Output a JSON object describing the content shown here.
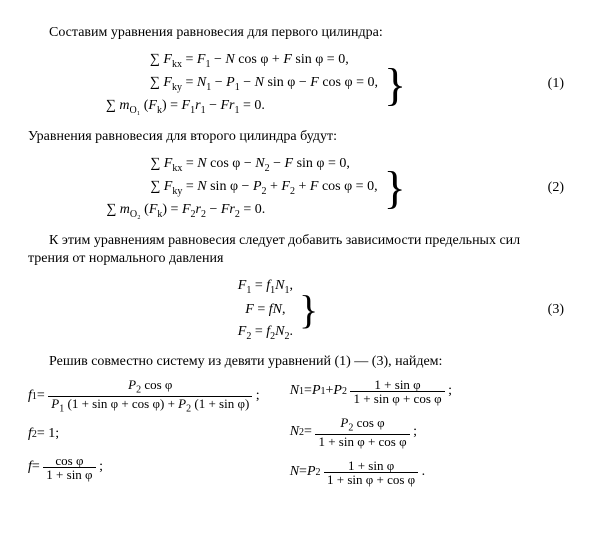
{
  "para1": "Составим уравнения равновесия для первого цилиндра:",
  "eq1": {
    "l1": "∑ Fₖₓ = F₁ − N cos φ + F sin φ = 0,",
    "l2": "∑ Fₖᵧ = N₁ − P₁ − N sin φ − F cos φ = 0,",
    "l3": "∑ m_O₁ (Fₖ) = F₁r₁ − Fr₁ = 0.",
    "num": "(1)"
  },
  "para2": "Уравнения равновесия для второго цилиндра будут:",
  "eq2": {
    "l1": "∑ Fₖₓ = N cos φ − N₂ − F sin φ = 0,",
    "l2": "∑ Fₖᵧ = N sin φ − P₂ + F₂ + F cos φ = 0,",
    "l3": "∑ m_O₂ (Fₖ) = F₂r₂ − Fr₂ = 0.",
    "num": "(2)"
  },
  "para3": "К этим уравнениям равновесия следует добавить зависимости пре­дельных сил трения от нормального давления",
  "eq3": {
    "l1": "F₁ = f₁N₁,",
    "l2": "F = fN,",
    "l3": "F₂ = f₂N₂.",
    "num": "(3)"
  },
  "para4": "Решив совместно систему из девяти уравнений (1) — (3), найдем:",
  "results": {
    "f1": {
      "lhs": "f₁ =",
      "num": "P₂ cos φ",
      "den": "P₁ (1 + sin φ + cos φ) + P₂ (1 + sin φ)",
      "tail": ";"
    },
    "f2": {
      "text": "f₂ = 1;"
    },
    "f": {
      "lhs": "f =",
      "num": "cos φ",
      "den": "1 + sin φ",
      "tail": ";"
    },
    "N1": {
      "lhs": "N₁ = P₁ + P₂",
      "num": "1 + sin φ",
      "den": "1 + sin φ + cos φ",
      "tail": ";"
    },
    "N2": {
      "lhs": "N₂ =",
      "num": "P₂ cos φ",
      "den": "1 + sin φ + cos φ",
      "tail": ";"
    },
    "N": {
      "lhs": "N = P₂",
      "num": "1 + sin φ",
      "den": "1 + sin φ + cos φ",
      "tail": "."
    }
  }
}
